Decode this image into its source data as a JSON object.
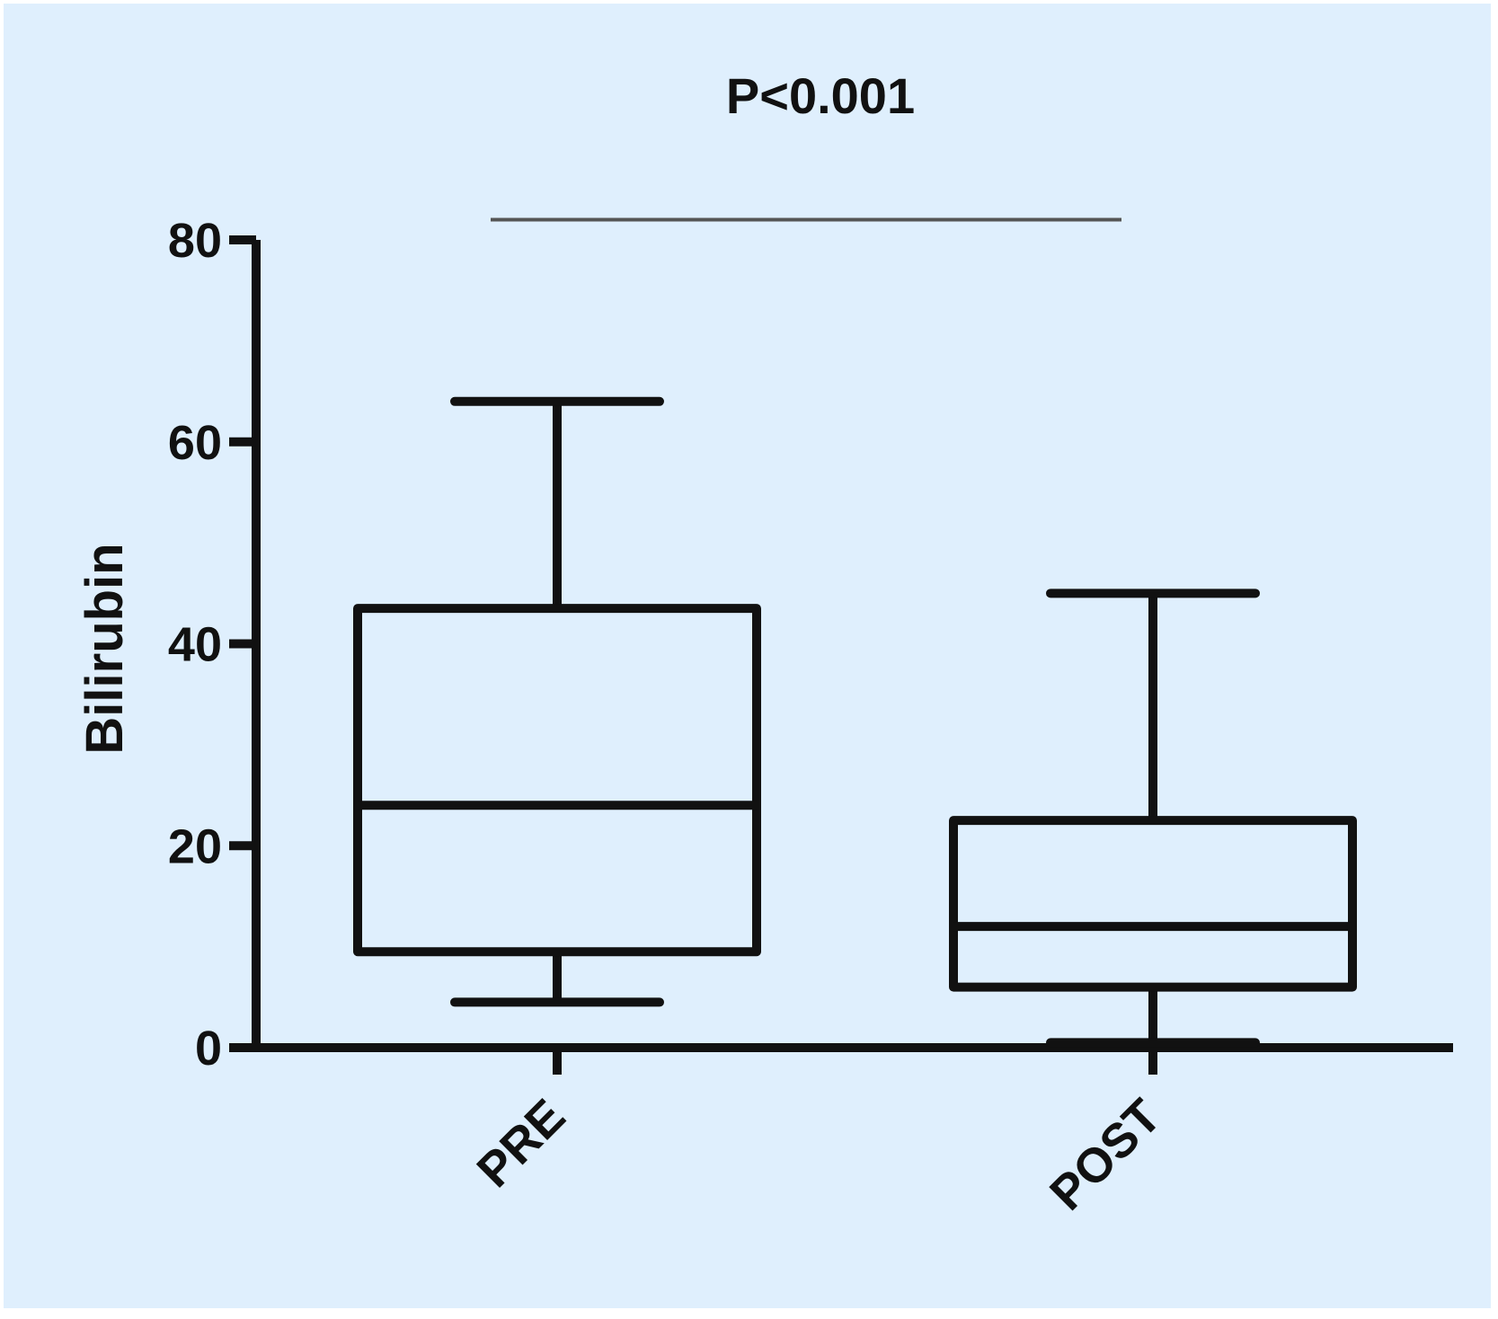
{
  "chart_data": {
    "type": "box",
    "title": "",
    "xlabel": "",
    "ylabel": "Bilirubin",
    "ylim": [
      0,
      80
    ],
    "yticks": [
      0,
      20,
      40,
      60,
      80
    ],
    "ytick_labels": [
      "0",
      "20",
      "40",
      "60",
      "80"
    ],
    "grid": false,
    "legend": "none",
    "categories": [
      "PRE",
      "POST"
    ],
    "boxes": [
      {
        "category": "PRE",
        "min": 4.5,
        "q1": 9.5,
        "median": 24,
        "q3": 43.5,
        "max": 64
      },
      {
        "category": "POST",
        "min": 0.5,
        "q1": 6,
        "median": 12,
        "q3": 22.5,
        "max": 45
      }
    ],
    "annotations": [
      {
        "text": "P<0.001",
        "type": "significance-bar",
        "from": "PRE",
        "to": "POST",
        "y": 82
      }
    ],
    "colors": {
      "background": "#dfeffd",
      "stroke": "#111111",
      "significance_line": "#555555"
    }
  }
}
